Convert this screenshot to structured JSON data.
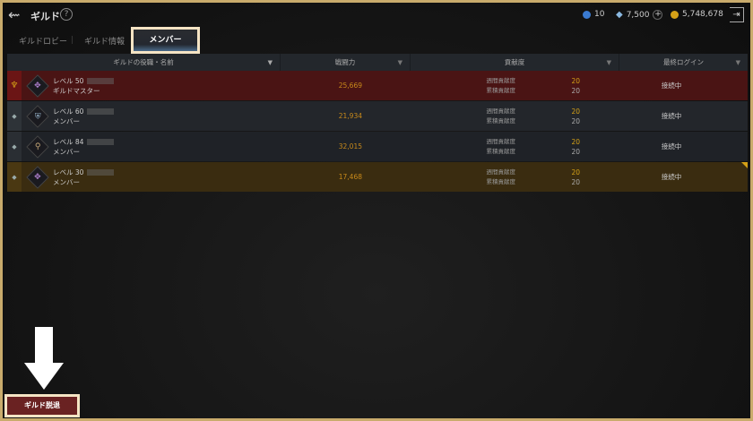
{
  "header": {
    "title": "ギルド",
    "help": "?",
    "currencies": [
      {
        "icon": "blue-coin-icon",
        "value": "10",
        "color": "#3a7ad0"
      },
      {
        "icon": "diamond-icon",
        "value": "7,500",
        "color": "#8ab8e0"
      },
      {
        "icon": "gold-coin-icon",
        "value": "5,748,678",
        "color": "#d4a017"
      }
    ],
    "add": "+",
    "exit": "⇥"
  },
  "tabs": [
    {
      "label": "ギルドロビー"
    },
    {
      "label": "ギルド情報"
    },
    {
      "label": "メンバー",
      "active": true
    }
  ],
  "columns": [
    "ギルドの役職・名前",
    "戦闘力",
    "貢献度",
    "最終ログイン"
  ],
  "contrib_labels": [
    "週間貢献度",
    "累積貢献度"
  ],
  "members": [
    {
      "level": "レベル 50",
      "role": "ギルドマスター",
      "power": "25,669",
      "weekly": "20",
      "total": "20",
      "login": "接続中",
      "emblem": "✥",
      "emblem_color": "#b080d0",
      "bg": "#4a1414",
      "side": "#6b1515",
      "side_icon": "crown-icon"
    },
    {
      "level": "レベル 60",
      "role": "メンバー",
      "power": "21,934",
      "weekly": "20",
      "total": "20",
      "login": "接続中",
      "emblem": "⛨",
      "emblem_color": "#9ab8d0",
      "bg": "#23262b",
      "side": "#2e3338",
      "side_icon": "diamond-bullet-icon"
    },
    {
      "level": "レベル 84",
      "role": "メンバー",
      "power": "32,015",
      "weekly": "20",
      "total": "20",
      "login": "接続中",
      "emblem": "⚲",
      "emblem_color": "#c8a878",
      "bg": "#1f2227",
      "side": "#2a2e33",
      "side_icon": "diamond-bullet-icon"
    },
    {
      "level": "レベル 30",
      "role": "メンバー",
      "power": "17,468",
      "weekly": "20",
      "total": "20",
      "login": "接続中",
      "emblem": "✥",
      "emblem_color": "#b080d0",
      "bg": "#3a2c10",
      "side": "#4a3812",
      "side_icon": "diamond-bullet-icon"
    }
  ],
  "footer": {
    "leave_button": "ギルド脱退"
  }
}
